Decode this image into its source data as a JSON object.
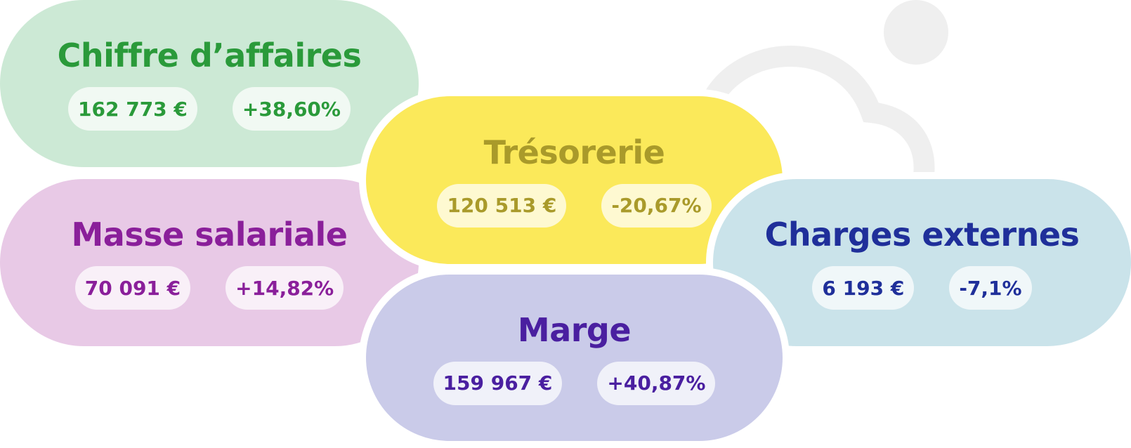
{
  "cards": [
    {
      "title": "Chiffre d’affaires",
      "amount": "162 773 €",
      "change": "+38,60%"
    },
    {
      "title": "Trésorerie",
      "amount": "120 513 €",
      "change": "-20,67%"
    },
    {
      "title": "Masse salariale",
      "amount": "70 091 €",
      "change": "+14,82%"
    },
    {
      "title": "Charges externes",
      "amount": "6 193 €",
      "change": "-7,1%"
    },
    {
      "title": "Marge",
      "amount": "159 967 €",
      "change": "+40,87%"
    }
  ]
}
